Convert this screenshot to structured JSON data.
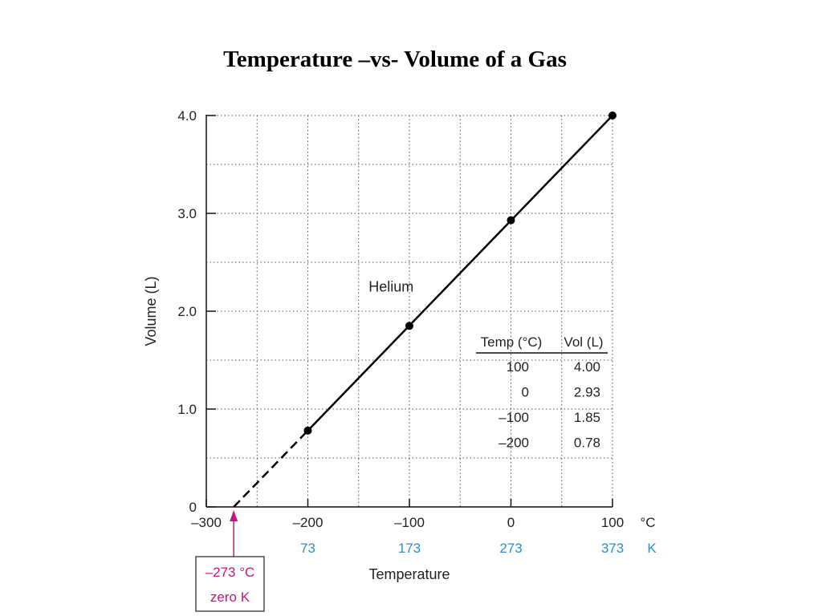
{
  "slide": {
    "title": "Temperature –vs- Volume of a Gas"
  },
  "chart_data": {
    "type": "line",
    "title": "Temperature –vs- Volume of a Gas",
    "xlabel": "Temperature",
    "ylabel": "Volume (L)",
    "xlim": [
      -300,
      100
    ],
    "ylim": [
      0,
      4.0
    ],
    "grid": true,
    "x_unit": "°C",
    "x_secondary_unit": "K",
    "x_ticks": [
      "–300",
      "–200",
      "–100",
      "0",
      "100"
    ],
    "x_tick_values": [
      -300,
      -200,
      -100,
      0,
      100
    ],
    "x_secondary_ticks": [
      "73",
      "173",
      "273",
      "373"
    ],
    "x_secondary_tick_positions": [
      -200,
      -100,
      0,
      100
    ],
    "y_ticks": [
      "0",
      "1.0",
      "2.0",
      "3.0",
      "4.0"
    ],
    "y_tick_values": [
      0,
      1.0,
      2.0,
      3.0,
      4.0
    ],
    "series": [
      {
        "name": "Helium",
        "x": [
          100,
          0,
          -100,
          -200
        ],
        "y": [
          4.0,
          2.93,
          1.85,
          0.78
        ],
        "extrapolated_to": [
          -273,
          0
        ]
      }
    ],
    "table": {
      "headers": [
        "Temp (°C)",
        "Vol (L)"
      ],
      "rows": [
        [
          "100",
          "4.00"
        ],
        [
          "0",
          "2.93"
        ],
        [
          "–100",
          "1.85"
        ],
        [
          "–200",
          "0.78"
        ]
      ]
    },
    "annotation": {
      "lines": [
        "–273 °C",
        "zero K"
      ],
      "x": -273,
      "y": 0,
      "color": "#c0187e"
    },
    "colors": {
      "secondary_axis": "#2a8fd0",
      "annotation": "#c0187e",
      "line": "#000000"
    }
  }
}
